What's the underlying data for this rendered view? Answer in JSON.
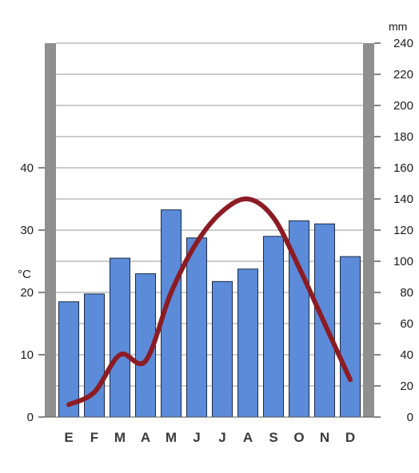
{
  "chart_data": {
    "type": "bar+line",
    "title": "",
    "categories": [
      "E",
      "F",
      "M",
      "A",
      "M",
      "J",
      "J",
      "A",
      "S",
      "O",
      "N",
      "D"
    ],
    "precipitation": {
      "type": "bar",
      "unit_label": "mm",
      "values": [
        74,
        79,
        102,
        92,
        133,
        115,
        87,
        95,
        116,
        126,
        124,
        103
      ],
      "ylim": [
        0,
        240
      ],
      "ticks": [
        0,
        20,
        40,
        60,
        80,
        100,
        120,
        140,
        160,
        180,
        200,
        220,
        240
      ],
      "color": "#5b8bd9"
    },
    "temperature": {
      "type": "line",
      "unit_label": "°C",
      "values": [
        2,
        4,
        10,
        9,
        20,
        28,
        33,
        35,
        32,
        24,
        15,
        6
      ],
      "ylim": [
        0,
        60
      ],
      "ticks": [
        0,
        10,
        20,
        30,
        40
      ],
      "color": "#8c1c24"
    },
    "grid": true
  }
}
